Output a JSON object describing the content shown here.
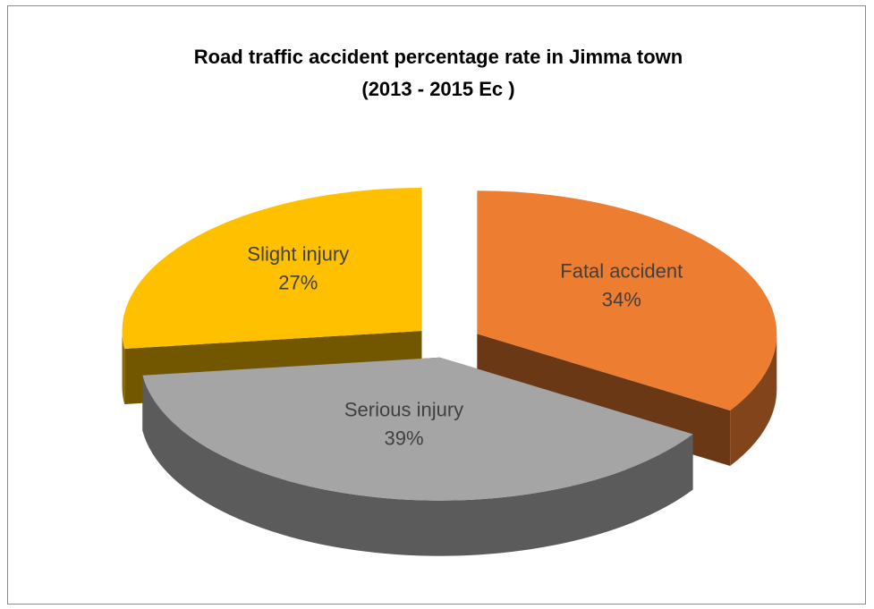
{
  "chart_data": {
    "type": "pie3d",
    "title": [
      "Road traffic accident  percentage rate in Jimma town",
      "(2013 - 2015 Ec )"
    ],
    "categories": [
      "Fatal accident",
      "Serious injury",
      "Slight injury"
    ],
    "values": [
      34,
      39,
      27
    ],
    "value_labels": [
      "34%",
      "39%",
      "27%"
    ],
    "colors": [
      "#ED7D31",
      "#A5A5A5",
      "#FFC000"
    ]
  }
}
